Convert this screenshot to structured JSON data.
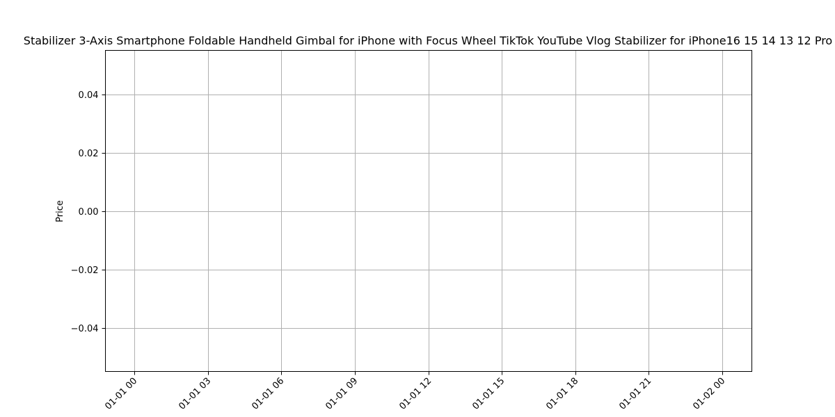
{
  "chart_data": {
    "type": "line",
    "title": "Stabilizer 3-Axis Smartphone Foldable Handheld Gimbal for iPhone with Focus Wheel TikTok YouTube Vlog Stabilizer for iPhone16 15 14 13 12 Pro",
    "xlabel": "",
    "ylabel": "Price",
    "x_ticks": [
      "01-01 00",
      "01-01 03",
      "01-01 06",
      "01-01 09",
      "01-01 12",
      "01-01 15",
      "01-01 18",
      "01-01 21",
      "01-02 00"
    ],
    "y_ticks": [
      "0.04",
      "0.02",
      "0.00",
      "−0.02",
      "−0.04"
    ],
    "y_tick_values": [
      0.04,
      0.02,
      0.0,
      -0.02,
      -0.04
    ],
    "ylim": [
      -0.055,
      0.055
    ],
    "grid": true,
    "series": []
  }
}
